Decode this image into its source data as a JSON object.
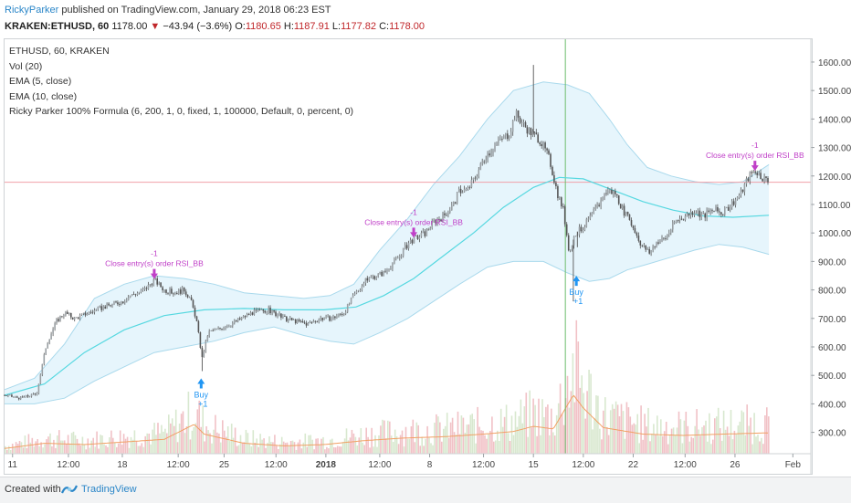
{
  "header": {
    "author": "RickyParker",
    "published_text": " published on TradingView.com, January 29, 2018 06:23 EST",
    "symbol": "KRAKEN:ETHUSD, 60",
    "last": "1178.00",
    "change_arrow": "▼",
    "change": "−43.94 (−3.6%)",
    "o_label": "O:",
    "o_val": "1180.65",
    "h_label": "H:",
    "h_val": "1187.91",
    "l_label": "L:",
    "l_val": "1177.82",
    "c_label": "C:",
    "c_val": "1178.00"
  },
  "legend": {
    "title": "ETHUSD, 60, KRAKEN",
    "vol": "Vol (20)",
    "ema5": "EMA (5, close)",
    "ema10": "EMA (10, close)",
    "strategy": "Ricky Parker 100% Formula (6, 200, 1, 0, fixed, 1, 100000, Default, 0, percent, 0)"
  },
  "footer": {
    "created_with": "Created with",
    "brand": "TradingView"
  },
  "colors": {
    "candle": "#555555",
    "ema": "#56d8e0",
    "band_fill": "#e2f3fb",
    "band_line": "#a9d9ec",
    "price_line": "#f0a0a8",
    "vol_up": "#d8e8cf",
    "vol_down": "#f1c1c6",
    "vol_ma": "#f2a064",
    "buy": "#2196f3",
    "close": "#c040c8",
    "vline": "#6dbd6d"
  },
  "chart_data": {
    "type": "candlestick",
    "title": "ETHUSD, 60, KRAKEN",
    "ylim": [
      225,
      1680
    ],
    "y_ticks": [
      300,
      400,
      500,
      600,
      700,
      800,
      900,
      1000,
      1100,
      1200,
      1300,
      1400,
      1500,
      1600
    ],
    "y_tick_labels": [
      "300.00",
      "400.00",
      "500.00",
      "600.00",
      "700.00",
      "800.00",
      "900.00",
      "1000.00",
      "1100.00",
      "1200.00",
      "1300.00",
      "1400.00",
      "1500.00",
      "1600.00"
    ],
    "last_price": 1178.0,
    "x_ticks": [
      {
        "label": "11",
        "t": 0.4
      },
      {
        "label": "12:00",
        "t": 3.2
      },
      {
        "label": "18",
        "t": 5.9
      },
      {
        "label": "12:00",
        "t": 8.7
      },
      {
        "label": "25",
        "t": 11.0
      },
      {
        "label": "12:00",
        "t": 13.6
      },
      {
        "label": "2018",
        "t": 16.1,
        "bold": true
      },
      {
        "label": "12:00",
        "t": 18.8
      },
      {
        "label": "8",
        "t": 21.3
      },
      {
        "label": "12:00",
        "t": 24.0
      },
      {
        "label": "15",
        "t": 26.5
      },
      {
        "label": "12:00",
        "t": 29.0
      },
      {
        "label": "22",
        "t": 31.5
      },
      {
        "label": "12:00",
        "t": 34.1
      },
      {
        "label": "26",
        "t": 36.6
      },
      {
        "label": "Feb",
        "t": 39.5
      }
    ],
    "xlim": [
      0,
      40.4
    ],
    "price_path": [
      [
        0,
        430
      ],
      [
        0.8,
        420
      ],
      [
        1.6,
        435
      ],
      [
        2.1,
        610
      ],
      [
        2.6,
        690
      ],
      [
        3.0,
        720
      ],
      [
        3.5,
        700
      ],
      [
        4.2,
        720
      ],
      [
        5.0,
        740
      ],
      [
        5.9,
        760
      ],
      [
        6.3,
        780
      ],
      [
        7.0,
        800
      ],
      [
        7.5,
        835
      ],
      [
        8.0,
        800
      ],
      [
        8.5,
        790
      ],
      [
        9.0,
        800
      ],
      [
        9.3,
        770
      ],
      [
        9.6,
        700
      ],
      [
        9.9,
        560
      ],
      [
        10.2,
        650
      ],
      [
        10.6,
        660
      ],
      [
        11.0,
        670
      ],
      [
        11.6,
        690
      ],
      [
        12.4,
        720
      ],
      [
        13.2,
        730
      ],
      [
        14.0,
        700
      ],
      [
        14.6,
        690
      ],
      [
        15.2,
        680
      ],
      [
        15.8,
        700
      ],
      [
        16.4,
        700
      ],
      [
        17.0,
        720
      ],
      [
        17.6,
        790
      ],
      [
        18.2,
        840
      ],
      [
        19.0,
        860
      ],
      [
        19.8,
        920
      ],
      [
        20.3,
        970
      ],
      [
        20.7,
        985
      ],
      [
        21.1,
        1000
      ],
      [
        21.5,
        1040
      ],
      [
        22.0,
        1060
      ],
      [
        22.5,
        1100
      ],
      [
        22.8,
        1150
      ],
      [
        23.2,
        1150
      ],
      [
        23.6,
        1200
      ],
      [
        24.1,
        1270
      ],
      [
        24.5,
        1300
      ],
      [
        24.9,
        1330
      ],
      [
        25.3,
        1350
      ],
      [
        25.6,
        1420
      ],
      [
        26.0,
        1380
      ],
      [
        26.4,
        1350
      ],
      [
        26.8,
        1330
      ],
      [
        27.3,
        1260
      ],
      [
        27.7,
        1140
      ],
      [
        28.0,
        1080
      ],
      [
        28.3,
        930
      ],
      [
        28.6,
        1000
      ],
      [
        29.0,
        1020
      ],
      [
        29.6,
        1080
      ],
      [
        30.2,
        1150
      ],
      [
        30.6,
        1140
      ],
      [
        31.0,
        1080
      ],
      [
        31.5,
        1020
      ],
      [
        31.9,
        960
      ],
      [
        32.3,
        930
      ],
      [
        32.7,
        970
      ],
      [
        33.1,
        980
      ],
      [
        33.6,
        1040
      ],
      [
        34.1,
        1060
      ],
      [
        34.6,
        1080
      ],
      [
        35.0,
        1060
      ],
      [
        35.5,
        1080
      ],
      [
        36.0,
        1070
      ],
      [
        36.4,
        1100
      ],
      [
        36.9,
        1140
      ],
      [
        37.3,
        1200
      ],
      [
        37.6,
        1220
      ],
      [
        37.9,
        1200
      ],
      [
        38.3,
        1178
      ]
    ],
    "spikes": [
      [
        9.9,
        515
      ],
      [
        26.5,
        1590
      ],
      [
        28.5,
        760
      ],
      [
        28.7,
        950
      ]
    ],
    "ema_slow": [
      [
        0,
        430
      ],
      [
        2,
        470
      ],
      [
        4,
        580
      ],
      [
        6,
        660
      ],
      [
        8,
        710
      ],
      [
        10,
        730
      ],
      [
        12,
        735
      ],
      [
        14,
        730
      ],
      [
        16,
        730
      ],
      [
        17.6,
        740
      ],
      [
        19,
        780
      ],
      [
        20.5,
        840
      ],
      [
        22,
        920
      ],
      [
        23.5,
        1000
      ],
      [
        25,
        1090
      ],
      [
        26.5,
        1160
      ],
      [
        27.8,
        1195
      ],
      [
        29,
        1190
      ],
      [
        30.5,
        1150
      ],
      [
        32,
        1110
      ],
      [
        33.5,
        1080
      ],
      [
        35,
        1060
      ],
      [
        36.5,
        1055
      ],
      [
        38.3,
        1062
      ]
    ],
    "band_upper": [
      [
        0,
        450
      ],
      [
        1.5,
        490
      ],
      [
        3,
        610
      ],
      [
        4.5,
        770
      ],
      [
        6,
        820
      ],
      [
        7.5,
        850
      ],
      [
        9,
        840
      ],
      [
        10.5,
        820
      ],
      [
        12,
        790
      ],
      [
        13.5,
        780
      ],
      [
        15,
        770
      ],
      [
        16.3,
        780
      ],
      [
        17.5,
        820
      ],
      [
        18.8,
        940
      ],
      [
        20.2,
        1050
      ],
      [
        21.5,
        1170
      ],
      [
        22.8,
        1270
      ],
      [
        24.2,
        1400
      ],
      [
        25.5,
        1500
      ],
      [
        27,
        1530
      ],
      [
        28.2,
        1520
      ],
      [
        29.3,
        1490
      ],
      [
        30.3,
        1400
      ],
      [
        31.2,
        1310
      ],
      [
        32.2,
        1230
      ],
      [
        33.4,
        1200
      ],
      [
        34.6,
        1180
      ],
      [
        35.8,
        1170
      ],
      [
        37,
        1180
      ],
      [
        38.3,
        1240
      ]
    ],
    "band_lower": [
      [
        0,
        400
      ],
      [
        1.5,
        400
      ],
      [
        3,
        420
      ],
      [
        4.5,
        480
      ],
      [
        6,
        530
      ],
      [
        7.5,
        580
      ],
      [
        9,
        600
      ],
      [
        10.5,
        620
      ],
      [
        12,
        650
      ],
      [
        13.5,
        670
      ],
      [
        15,
        640
      ],
      [
        16.3,
        620
      ],
      [
        17.5,
        610
      ],
      [
        18.8,
        650
      ],
      [
        20.2,
        700
      ],
      [
        21.5,
        760
      ],
      [
        22.8,
        820
      ],
      [
        24.2,
        880
      ],
      [
        25.5,
        900
      ],
      [
        27,
        900
      ],
      [
        28.2,
        860
      ],
      [
        29.3,
        830
      ],
      [
        30.3,
        840
      ],
      [
        31.2,
        870
      ],
      [
        32.2,
        890
      ],
      [
        33.4,
        915
      ],
      [
        34.6,
        940
      ],
      [
        35.8,
        960
      ],
      [
        37,
        950
      ],
      [
        38.3,
        925
      ]
    ],
    "volume_profile": [
      [
        0,
        0.08
      ],
      [
        2,
        0.16
      ],
      [
        4,
        0.14
      ],
      [
        6,
        0.18
      ],
      [
        8,
        0.22
      ],
      [
        9.5,
        0.45
      ],
      [
        10,
        0.3
      ],
      [
        12,
        0.16
      ],
      [
        14,
        0.12
      ],
      [
        16,
        0.14
      ],
      [
        18,
        0.2
      ],
      [
        20,
        0.24
      ],
      [
        22,
        0.26
      ],
      [
        24,
        0.3
      ],
      [
        25.5,
        0.34
      ],
      [
        26.5,
        0.42
      ],
      [
        27.5,
        0.38
      ],
      [
        28.5,
        0.9
      ],
      [
        29,
        0.7
      ],
      [
        30,
        0.4
      ],
      [
        32,
        0.3
      ],
      [
        34,
        0.28
      ],
      [
        36,
        0.3
      ],
      [
        38.3,
        0.32
      ]
    ],
    "volume_axis_note": "volume scaled to bottom band of chart",
    "vertical_marker_t": 28.1,
    "buys": [
      {
        "t": 9.85,
        "price": 515,
        "label": "Buy",
        "qty": "+1"
      },
      {
        "t": 28.65,
        "price": 875,
        "label": "Buy",
        "qty": "+1"
      }
    ],
    "closes": [
      {
        "t": 7.5,
        "price": 835,
        "label": "Close entry(s) order RSI_BB",
        "qty": "-1"
      },
      {
        "t": 20.5,
        "price": 980,
        "label": "Close entry(s) order RSI_BB",
        "qty": "-1"
      },
      {
        "t": 37.6,
        "price": 1215,
        "label": "Close entry(s) order RSI_BB",
        "qty": "-1"
      }
    ]
  }
}
